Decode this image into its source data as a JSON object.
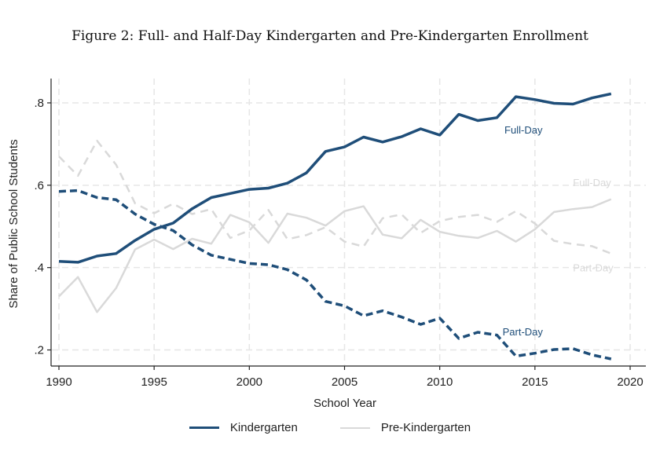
{
  "figure_title": "Figure 2: Full- and Half-Day Kindergarten and Pre-Kindergarten Enrollment",
  "colors": {
    "kindergarten": "#1f4e79",
    "pre_kindergarten": "#d9d9d9",
    "grid": "#e6e6e6",
    "axis": "#222222"
  },
  "chart_data": {
    "type": "line",
    "title": "Figure 2: Full- and Half-Day Kindergarten and Pre-Kindergarten Enrollment",
    "xlabel": "School Year",
    "ylabel": "Share of Public School Students",
    "xlim": [
      1990,
      2020
    ],
    "ylim": [
      0.18,
      0.84
    ],
    "xticks": [
      1990,
      1995,
      2000,
      2005,
      2010,
      2015,
      2020
    ],
    "xtick_labels": [
      "1990",
      "1995",
      "2000",
      "2005",
      "2010",
      "2015",
      "2020"
    ],
    "yticks": [
      0.2,
      0.4,
      0.6,
      0.8
    ],
    "ytick_labels": [
      ".2",
      ".4",
      ".6",
      ".8"
    ],
    "grid": true,
    "legend": {
      "position": "bottom",
      "entries": [
        "Kindergarten",
        "Pre-Kindergarten"
      ]
    },
    "x": [
      1990,
      1991,
      1992,
      1993,
      1994,
      1995,
      1996,
      1997,
      1998,
      1999,
      2000,
      2001,
      2002,
      2003,
      2004,
      2005,
      2006,
      2007,
      2008,
      2009,
      2010,
      2011,
      2012,
      2013,
      2014,
      2015,
      2016,
      2017,
      2018,
      2019
    ],
    "series": [
      {
        "name": "Kindergarten Full-Day",
        "group": "Kindergarten",
        "style": "solid",
        "color_key": "kindergarten",
        "label": "Full-Day",
        "label_x": 2013.4,
        "label_y": 0.735,
        "values": [
          0.415,
          0.413,
          0.428,
          0.434,
          0.466,
          0.493,
          0.508,
          0.543,
          0.57,
          0.58,
          0.59,
          0.593,
          0.605,
          0.63,
          0.682,
          0.693,
          0.717,
          0.705,
          0.718,
          0.737,
          0.722,
          0.772,
          0.757,
          0.764,
          0.815,
          0.808,
          0.799,
          0.797,
          0.812,
          0.822
        ]
      },
      {
        "name": "Kindergarten Part-Day",
        "group": "Kindergarten",
        "style": "dashed",
        "color_key": "kindergarten",
        "label": "Part-Day",
        "label_x": 2013.3,
        "label_y": 0.245,
        "values": [
          0.585,
          0.587,
          0.57,
          0.565,
          0.53,
          0.505,
          0.49,
          0.455,
          0.43,
          0.42,
          0.41,
          0.407,
          0.395,
          0.37,
          0.318,
          0.307,
          0.283,
          0.295,
          0.28,
          0.262,
          0.277,
          0.228,
          0.243,
          0.236,
          0.185,
          0.192,
          0.201,
          0.203,
          0.188,
          0.178
        ]
      },
      {
        "name": "Pre-Kindergarten Full-Day",
        "group": "Pre-Kindergarten",
        "style": "solid",
        "color_key": "pre_kindergarten",
        "label": "Full-Day",
        "label_x": 2017.0,
        "label_y": 0.607,
        "values": [
          0.33,
          0.377,
          0.292,
          0.35,
          0.444,
          0.468,
          0.445,
          0.47,
          0.458,
          0.528,
          0.51,
          0.46,
          0.531,
          0.521,
          0.502,
          0.537,
          0.549,
          0.48,
          0.471,
          0.516,
          0.487,
          0.477,
          0.472,
          0.489,
          0.463,
          0.493,
          0.535,
          0.542,
          0.547,
          0.566
        ]
      },
      {
        "name": "Pre-Kindergarten Part-Day",
        "group": "Pre-Kindergarten",
        "style": "dashed",
        "color_key": "pre_kindergarten",
        "label": "Part-Day",
        "label_x": 2017.0,
        "label_y": 0.4,
        "values": [
          0.67,
          0.623,
          0.708,
          0.65,
          0.556,
          0.532,
          0.555,
          0.53,
          0.542,
          0.472,
          0.49,
          0.54,
          0.469,
          0.479,
          0.498,
          0.463,
          0.451,
          0.52,
          0.529,
          0.484,
          0.513,
          0.523,
          0.528,
          0.511,
          0.537,
          0.507,
          0.465,
          0.457,
          0.452,
          0.434
        ]
      }
    ]
  }
}
